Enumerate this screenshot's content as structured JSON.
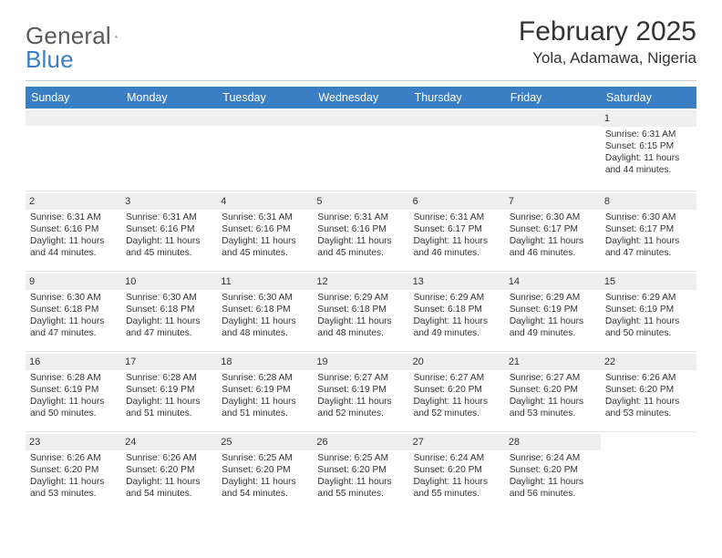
{
  "logo": {
    "text1": "General",
    "text2": "Blue",
    "sail_color": "#2f6fb0"
  },
  "title": "February 2025",
  "location": "Yola, Adamawa, Nigeria",
  "header_bg": "#3a7fc4",
  "header_fg": "#ffffff",
  "day_strip_bg": "#efefef",
  "border_color": "#e5e7eb",
  "weekdays": [
    "Sunday",
    "Monday",
    "Tuesday",
    "Wednesday",
    "Thursday",
    "Friday",
    "Saturday"
  ],
  "weeks": [
    [
      {
        "day": "",
        "sunrise": "",
        "sunset": "",
        "daylight": ""
      },
      {
        "day": "",
        "sunrise": "",
        "sunset": "",
        "daylight": ""
      },
      {
        "day": "",
        "sunrise": "",
        "sunset": "",
        "daylight": ""
      },
      {
        "day": "",
        "sunrise": "",
        "sunset": "",
        "daylight": ""
      },
      {
        "day": "",
        "sunrise": "",
        "sunset": "",
        "daylight": ""
      },
      {
        "day": "",
        "sunrise": "",
        "sunset": "",
        "daylight": ""
      },
      {
        "day": "1",
        "sunrise": "Sunrise: 6:31 AM",
        "sunset": "Sunset: 6:15 PM",
        "daylight": "Daylight: 11 hours and 44 minutes."
      }
    ],
    [
      {
        "day": "2",
        "sunrise": "Sunrise: 6:31 AM",
        "sunset": "Sunset: 6:16 PM",
        "daylight": "Daylight: 11 hours and 44 minutes."
      },
      {
        "day": "3",
        "sunrise": "Sunrise: 6:31 AM",
        "sunset": "Sunset: 6:16 PM",
        "daylight": "Daylight: 11 hours and 45 minutes."
      },
      {
        "day": "4",
        "sunrise": "Sunrise: 6:31 AM",
        "sunset": "Sunset: 6:16 PM",
        "daylight": "Daylight: 11 hours and 45 minutes."
      },
      {
        "day": "5",
        "sunrise": "Sunrise: 6:31 AM",
        "sunset": "Sunset: 6:16 PM",
        "daylight": "Daylight: 11 hours and 45 minutes."
      },
      {
        "day": "6",
        "sunrise": "Sunrise: 6:31 AM",
        "sunset": "Sunset: 6:17 PM",
        "daylight": "Daylight: 11 hours and 46 minutes."
      },
      {
        "day": "7",
        "sunrise": "Sunrise: 6:30 AM",
        "sunset": "Sunset: 6:17 PM",
        "daylight": "Daylight: 11 hours and 46 minutes."
      },
      {
        "day": "8",
        "sunrise": "Sunrise: 6:30 AM",
        "sunset": "Sunset: 6:17 PM",
        "daylight": "Daylight: 11 hours and 47 minutes."
      }
    ],
    [
      {
        "day": "9",
        "sunrise": "Sunrise: 6:30 AM",
        "sunset": "Sunset: 6:18 PM",
        "daylight": "Daylight: 11 hours and 47 minutes."
      },
      {
        "day": "10",
        "sunrise": "Sunrise: 6:30 AM",
        "sunset": "Sunset: 6:18 PM",
        "daylight": "Daylight: 11 hours and 47 minutes."
      },
      {
        "day": "11",
        "sunrise": "Sunrise: 6:30 AM",
        "sunset": "Sunset: 6:18 PM",
        "daylight": "Daylight: 11 hours and 48 minutes."
      },
      {
        "day": "12",
        "sunrise": "Sunrise: 6:29 AM",
        "sunset": "Sunset: 6:18 PM",
        "daylight": "Daylight: 11 hours and 48 minutes."
      },
      {
        "day": "13",
        "sunrise": "Sunrise: 6:29 AM",
        "sunset": "Sunset: 6:18 PM",
        "daylight": "Daylight: 11 hours and 49 minutes."
      },
      {
        "day": "14",
        "sunrise": "Sunrise: 6:29 AM",
        "sunset": "Sunset: 6:19 PM",
        "daylight": "Daylight: 11 hours and 49 minutes."
      },
      {
        "day": "15",
        "sunrise": "Sunrise: 6:29 AM",
        "sunset": "Sunset: 6:19 PM",
        "daylight": "Daylight: 11 hours and 50 minutes."
      }
    ],
    [
      {
        "day": "16",
        "sunrise": "Sunrise: 6:28 AM",
        "sunset": "Sunset: 6:19 PM",
        "daylight": "Daylight: 11 hours and 50 minutes."
      },
      {
        "day": "17",
        "sunrise": "Sunrise: 6:28 AM",
        "sunset": "Sunset: 6:19 PM",
        "daylight": "Daylight: 11 hours and 51 minutes."
      },
      {
        "day": "18",
        "sunrise": "Sunrise: 6:28 AM",
        "sunset": "Sunset: 6:19 PM",
        "daylight": "Daylight: 11 hours and 51 minutes."
      },
      {
        "day": "19",
        "sunrise": "Sunrise: 6:27 AM",
        "sunset": "Sunset: 6:19 PM",
        "daylight": "Daylight: 11 hours and 52 minutes."
      },
      {
        "day": "20",
        "sunrise": "Sunrise: 6:27 AM",
        "sunset": "Sunset: 6:20 PM",
        "daylight": "Daylight: 11 hours and 52 minutes."
      },
      {
        "day": "21",
        "sunrise": "Sunrise: 6:27 AM",
        "sunset": "Sunset: 6:20 PM",
        "daylight": "Daylight: 11 hours and 53 minutes."
      },
      {
        "day": "22",
        "sunrise": "Sunrise: 6:26 AM",
        "sunset": "Sunset: 6:20 PM",
        "daylight": "Daylight: 11 hours and 53 minutes."
      }
    ],
    [
      {
        "day": "23",
        "sunrise": "Sunrise: 6:26 AM",
        "sunset": "Sunset: 6:20 PM",
        "daylight": "Daylight: 11 hours and 53 minutes."
      },
      {
        "day": "24",
        "sunrise": "Sunrise: 6:26 AM",
        "sunset": "Sunset: 6:20 PM",
        "daylight": "Daylight: 11 hours and 54 minutes."
      },
      {
        "day": "25",
        "sunrise": "Sunrise: 6:25 AM",
        "sunset": "Sunset: 6:20 PM",
        "daylight": "Daylight: 11 hours and 54 minutes."
      },
      {
        "day": "26",
        "sunrise": "Sunrise: 6:25 AM",
        "sunset": "Sunset: 6:20 PM",
        "daylight": "Daylight: 11 hours and 55 minutes."
      },
      {
        "day": "27",
        "sunrise": "Sunrise: 6:24 AM",
        "sunset": "Sunset: 6:20 PM",
        "daylight": "Daylight: 11 hours and 55 minutes."
      },
      {
        "day": "28",
        "sunrise": "Sunrise: 6:24 AM",
        "sunset": "Sunset: 6:20 PM",
        "daylight": "Daylight: 11 hours and 56 minutes."
      },
      {
        "day": "",
        "sunrise": "",
        "sunset": "",
        "daylight": ""
      }
    ]
  ]
}
